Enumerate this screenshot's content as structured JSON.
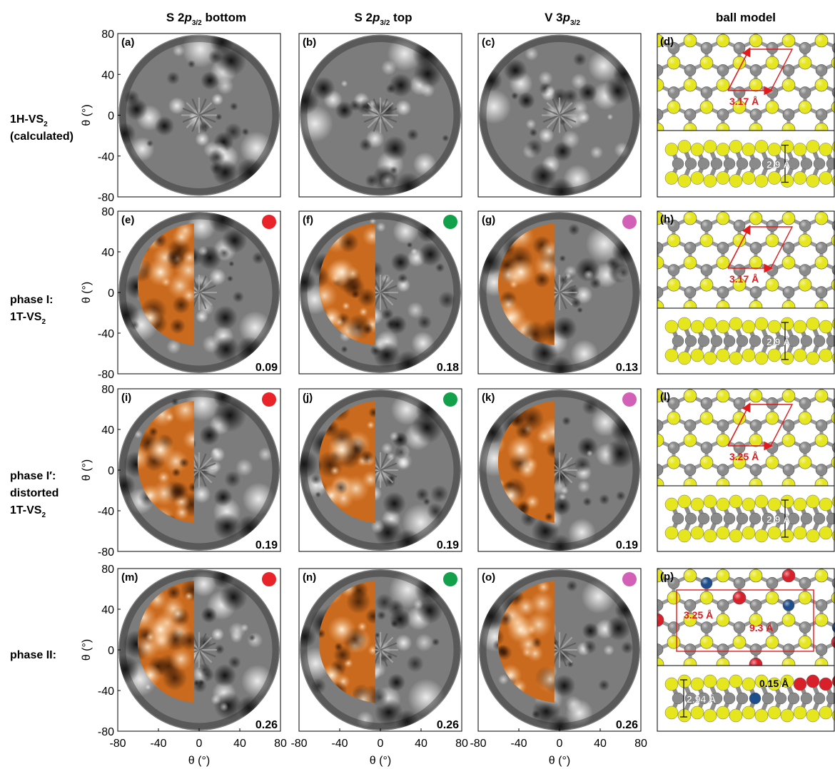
{
  "columns": [
    {
      "pre": "S 2",
      "p": "p",
      "sub": "3/2",
      "post": " bottom"
    },
    {
      "pre": "S 2",
      "p": "p",
      "sub": "3/2",
      "post": " top"
    },
    {
      "pre": "V 3",
      "p": "p",
      "sub": "3/2",
      "post": ""
    },
    {
      "pre": "ball model",
      "p": "",
      "sub": "",
      "post": ""
    }
  ],
  "rows": [
    {
      "lines": [
        {
          "t": "1H-VS",
          "s": "2"
        },
        {
          "t": "(calculated)",
          "s": ""
        }
      ]
    },
    {
      "lines": [
        {
          "t": "phase I:",
          "s": ""
        },
        {
          "t": "1T-VS",
          "s": "2"
        }
      ]
    },
    {
      "lines": [
        {
          "t": "phase I′:",
          "s": ""
        },
        {
          "t": "distorted",
          "s": ""
        },
        {
          "t": "1T-VS",
          "s": "2"
        }
      ]
    },
    {
      "lines": [
        {
          "t": "phase II:",
          "s": ""
        }
      ]
    }
  ],
  "axis": {
    "y_ticks": [
      "80",
      "40",
      "0",
      "-40",
      "-80"
    ],
    "x_ticks": [
      "-80",
      "-40",
      "0",
      "40",
      "80"
    ],
    "label": "θ (°)"
  },
  "panels": [
    {
      "tag": "(a)",
      "row": 0,
      "col": 0,
      "r_factor": ""
    },
    {
      "tag": "(b)",
      "row": 0,
      "col": 1,
      "r_factor": ""
    },
    {
      "tag": "(c)",
      "row": 0,
      "col": 2,
      "r_factor": ""
    },
    {
      "tag": "(e)",
      "row": 1,
      "col": 0,
      "r_factor": "0.09",
      "dot": "#e8232a"
    },
    {
      "tag": "(f)",
      "row": 1,
      "col": 1,
      "r_factor": "0.18",
      "dot": "#12a04a"
    },
    {
      "tag": "(g)",
      "row": 1,
      "col": 2,
      "r_factor": "0.13",
      "dot": "#d160b6"
    },
    {
      "tag": "(i)",
      "row": 2,
      "col": 0,
      "r_factor": "0.19",
      "dot": "#e8232a"
    },
    {
      "tag": "(j)",
      "row": 2,
      "col": 1,
      "r_factor": "0.19",
      "dot": "#12a04a"
    },
    {
      "tag": "(k)",
      "row": 2,
      "col": 2,
      "r_factor": "0.19",
      "dot": "#d160b6"
    },
    {
      "tag": "(m)",
      "row": 3,
      "col": 0,
      "r_factor": "0.26",
      "dot": "#e8232a"
    },
    {
      "tag": "(n)",
      "row": 3,
      "col": 1,
      "r_factor": "0.26",
      "dot": "#12a04a"
    },
    {
      "tag": "(o)",
      "row": 3,
      "col": 2,
      "r_factor": "0.26",
      "dot": "#d160b6"
    }
  ],
  "ball_models": [
    {
      "tag": "(d)",
      "top_label": "3.17 Å",
      "side_label": "2.9 Å"
    },
    {
      "tag": "(h)",
      "top_label": "3.17 Å",
      "side_label": "2.9 Å"
    },
    {
      "tag": "(l)",
      "top_label": "3.25 Å",
      "side_label": "2.9 Å"
    },
    {
      "tag": "(p)",
      "top_label": "3.25 Å",
      "top_label2": "9.3 Å",
      "side_label": "2.94 Å",
      "side_label2": "0.15 Å"
    }
  ],
  "colors": {
    "sulfur": "#e6e61e",
    "vanadium": "#8a8a8a",
    "arrow": "#e31a1c",
    "distorted": "#1f4e8c",
    "red_atom": "#d8202a",
    "experiment": "#e07a22"
  }
}
